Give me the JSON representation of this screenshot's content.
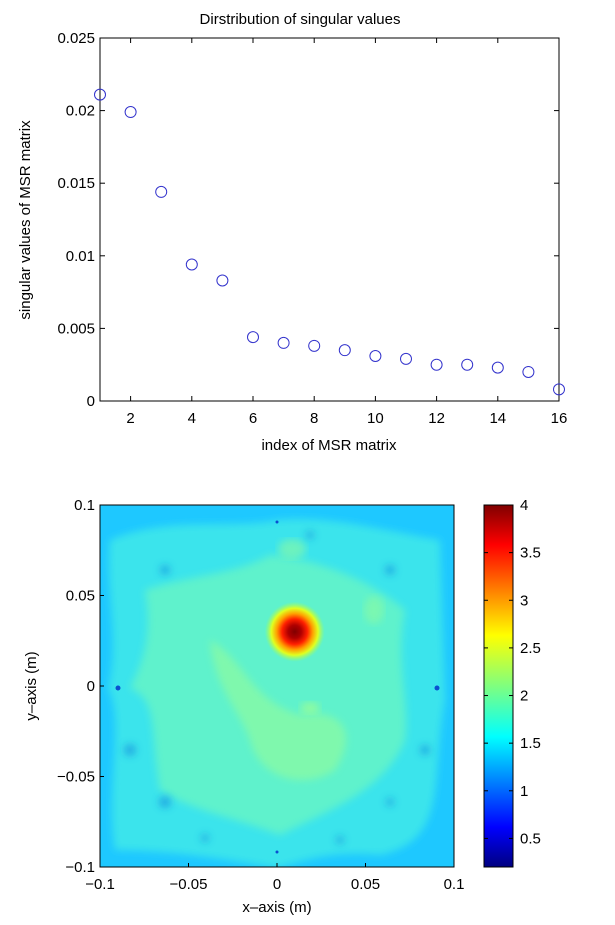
{
  "chart_data": [
    {
      "type": "scatter",
      "title": "Dirstribution of singular values",
      "xlabel": "index of MSR matrix",
      "ylabel": "singular values of MSR matrix",
      "xlim": [
        1,
        16
      ],
      "ylim": [
        0,
        0.025
      ],
      "xticks": [
        "2",
        "4",
        "6",
        "8",
        "10",
        "12",
        "14",
        "16"
      ],
      "yticks": [
        "0",
        "0.005",
        "0.01",
        "0.015",
        "0.02",
        "0.025"
      ],
      "marker": "circle",
      "marker_color": "#3333cc",
      "grid": false,
      "x": [
        1,
        2,
        3,
        4,
        5,
        6,
        7,
        8,
        9,
        10,
        11,
        12,
        13,
        14,
        15,
        16
      ],
      "y": [
        0.0211,
        0.0199,
        0.0144,
        0.0094,
        0.0083,
        0.0044,
        0.004,
        0.0038,
        0.0035,
        0.0031,
        0.0029,
        0.0025,
        0.0025,
        0.0023,
        0.002,
        0.0008
      ]
    },
    {
      "type": "heatmap",
      "title": "",
      "xlabel": "x–axis (m)",
      "ylabel": "y–axis (m)",
      "xlim": [
        -0.1,
        0.1
      ],
      "ylim": [
        -0.1,
        0.1
      ],
      "xticks": [
        "−0.1",
        "−0.05",
        "0",
        "0.05",
        "0.1"
      ],
      "yticks": [
        "−0.1",
        "−0.05",
        "0",
        "0.05",
        "0.1"
      ],
      "colormap": "jet",
      "color_range": [
        0.2,
        4
      ],
      "colorbar_ticks": [
        "0.5",
        "1",
        "1.5",
        "2",
        "2.5",
        "3",
        "3.5",
        "4"
      ],
      "background_level": 1.75,
      "peak": {
        "x": 0.01,
        "y": 0.03,
        "value": 4
      }
    }
  ]
}
